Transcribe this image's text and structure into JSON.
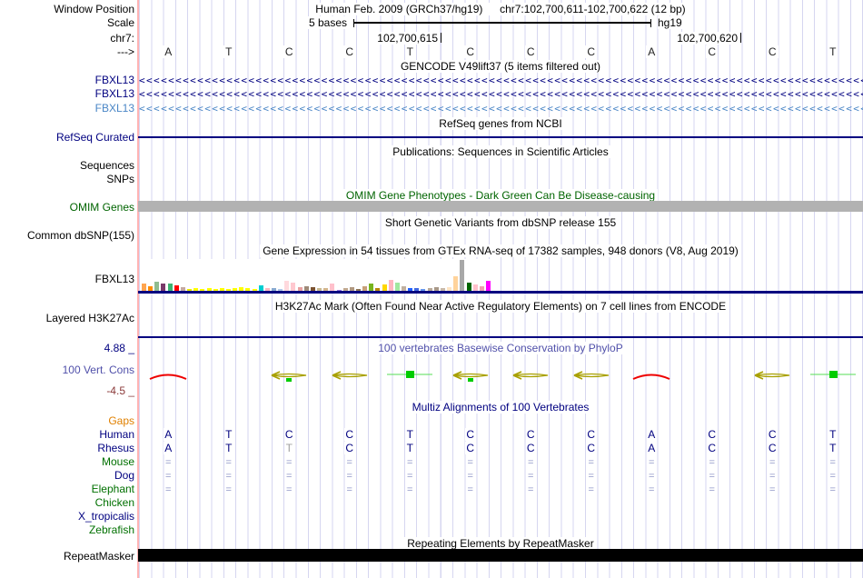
{
  "header": {
    "assembly": "Human Feb. 2009 (GRCh37/hg19)",
    "range": "chr7:102,700,611-102,700,622 (12 bp)",
    "scale_label": "5 bases",
    "assembly_tag": "hg19",
    "coord_left": "102,700,615",
    "coord_right": "102,700,620"
  },
  "labels": {
    "window_position": "Window Position",
    "scale": "Scale",
    "chr": "chr7:",
    "direction": "--->",
    "gene1": "FBXL13",
    "gene2": "FBXL13",
    "gene3": "FBXL13",
    "refseq_curated": "RefSeq Curated",
    "sequences": "Sequences",
    "snps": "SNPs",
    "omim_genes": "OMIM Genes",
    "common_dbsnp": "Common dbSNP(155)",
    "gtex_gene": "FBXL13",
    "h3k27ac": "Layered H3K27Ac",
    "cons_max": "4.88 _",
    "cons_name": "100 Vert. Cons",
    "cons_min": "-4.5 _",
    "repeatmasker": "RepeatMasker"
  },
  "titles": {
    "gencode": "GENCODE V49lift37 (5 items filtered out)",
    "refseq": "RefSeq genes from NCBI",
    "publications": "Publications: Sequences in Scientific Articles",
    "omim": "OMIM Gene Phenotypes - Dark Green Can Be Disease-causing",
    "dbsnp": "Short Genetic Variants from dbSNP release 155",
    "gtex": "Gene Expression in 54 tissues from GTEx RNA-seq of 17382 samples, 948 donors (V8, Aug 2019)",
    "h3k27ac": "H3K27Ac Mark (Often Found Near Active Regulatory Elements) on 7 cell lines from ENCODE",
    "phylop": "100 vertebrates Basewise Conservation by PhyloP",
    "multiz": "Multiz Alignments of 100 Vertebrates",
    "repeat": "Repeating Elements by RepeatMasker"
  },
  "ruler": {
    "bases": [
      "A",
      "T",
      "C",
      "C",
      "T",
      "C",
      "C",
      "C",
      "A",
      "C",
      "C",
      "T"
    ]
  },
  "conservation": {
    "glyphs": [
      "arc",
      "none",
      "arrowg",
      "arrow",
      "sq",
      "arrowg",
      "arrow",
      "arrow",
      "arc",
      "none",
      "arrow",
      "sq"
    ],
    "colors": {
      "arc": "#ee0000",
      "arrow": "#a8a000",
      "tick": "#00cc00",
      "line": "#55dd55"
    }
  },
  "multiz": {
    "species": [
      {
        "name": "Gaps",
        "color": "#e08000",
        "cells": [
          "",
          "",
          "",
          "",
          "",
          "",
          "",
          "",
          "",
          "",
          "",
          ""
        ]
      },
      {
        "name": "Human",
        "color": "#000080",
        "cells": [
          "A",
          "T",
          "C",
          "C",
          "T",
          "C",
          "C",
          "C",
          "A",
          "C",
          "C",
          "T"
        ]
      },
      {
        "name": "Rhesus",
        "color": "#000080",
        "cells": [
          "A",
          "T",
          "T*",
          "C",
          "T",
          "C",
          "C",
          "C",
          "A",
          "C",
          "C",
          "T"
        ]
      },
      {
        "name": "Mouse",
        "color": "#007000",
        "cells": [
          "=",
          "=",
          "=",
          "=",
          "=",
          "=",
          "=",
          "=",
          "=",
          "=",
          "=",
          "="
        ]
      },
      {
        "name": "Dog",
        "color": "#000080",
        "cells": [
          "=",
          "=",
          "=",
          "=",
          "=",
          "=",
          "=",
          "=",
          "=",
          "=",
          "=",
          "="
        ]
      },
      {
        "name": "Elephant",
        "color": "#007000",
        "cells": [
          "=",
          "=",
          "=",
          "=",
          "=",
          "=",
          "=",
          "=",
          "=",
          "=",
          "=",
          "="
        ]
      },
      {
        "name": "Chicken",
        "color": "#007000",
        "cells": [
          "",
          "",
          "",
          "",
          "",
          "",
          "",
          "",
          "",
          "",
          "",
          ""
        ]
      },
      {
        "name": "X_tropicalis",
        "color": "#000080",
        "cells": [
          "",
          "",
          "",
          "",
          "",
          "",
          "",
          "",
          "",
          "",
          "",
          ""
        ]
      },
      {
        "name": "Zebrafish",
        "color": "#007000",
        "cells": [
          "",
          "",
          "",
          "",
          "",
          "",
          "",
          "",
          "",
          "",
          "",
          ""
        ]
      }
    ]
  },
  "chart_data": {
    "type": "bar",
    "title": "Gene Expression in 54 tissues from GTEx RNA-seq of 17382 samples, 948 donors (V8, Aug 2019)",
    "gene": "FBXL13",
    "note": "values are approximate bar heights in pixels read from the screenshot",
    "bars": [
      [
        9,
        "#ffa54f"
      ],
      [
        6,
        "#ff8c00"
      ],
      [
        11,
        "#8fbc8f"
      ],
      [
        9,
        "#7a3a6a"
      ],
      [
        9,
        "#3cb371"
      ],
      [
        7,
        "#ff0000"
      ],
      [
        5,
        "#c4a9a1"
      ],
      [
        3,
        "#e8e800"
      ],
      [
        4,
        "#ffff00"
      ],
      [
        3,
        "#ffff00"
      ],
      [
        4,
        "#ffff00"
      ],
      [
        3,
        "#ffff00"
      ],
      [
        4,
        "#ffff00"
      ],
      [
        3,
        "#ffff00"
      ],
      [
        4,
        "#ffff00"
      ],
      [
        5,
        "#ffff00"
      ],
      [
        4,
        "#ffff00"
      ],
      [
        3,
        "#ffff00"
      ],
      [
        7,
        "#00ced1"
      ],
      [
        4,
        "#ffb6c1"
      ],
      [
        4,
        "#87a9d0"
      ],
      [
        3,
        "#aec6e8"
      ],
      [
        12,
        "#ffd9dd"
      ],
      [
        10,
        "#ffc8cf"
      ],
      [
        5,
        "#e8a0a0"
      ],
      [
        6,
        "#9e8a78"
      ],
      [
        5,
        "#7a5230"
      ],
      [
        4,
        "#c8b890"
      ],
      [
        4,
        "#d2b48c"
      ],
      [
        9,
        "#ffc0cb"
      ],
      [
        2,
        "#9370db"
      ],
      [
        4,
        "#c0a890"
      ],
      [
        5,
        "#b09880"
      ],
      [
        3,
        "#8b7355"
      ],
      [
        6,
        "#c8a078"
      ],
      [
        9,
        "#77b41f"
      ],
      [
        4,
        "#b8860b"
      ],
      [
        8,
        "#ffd700"
      ],
      [
        13,
        "#ffb6c1"
      ],
      [
        10,
        "#a0e8a0"
      ],
      [
        6,
        "#c0b0a0"
      ],
      [
        4,
        "#2060ff"
      ],
      [
        4,
        "#4169e1"
      ],
      [
        3,
        "#6495ed"
      ],
      [
        4,
        "#b8a898"
      ],
      [
        5,
        "#a89888"
      ],
      [
        4,
        "#c8b8a8"
      ],
      [
        5,
        "#ffe4c4"
      ],
      [
        17,
        "#ffd39b"
      ],
      [
        35,
        "#a8a8a8"
      ],
      [
        10,
        "#006400"
      ],
      [
        8,
        "#ffc0cb"
      ],
      [
        6,
        "#f0a0b0"
      ],
      [
        12,
        "#ff00ff"
      ]
    ]
  }
}
